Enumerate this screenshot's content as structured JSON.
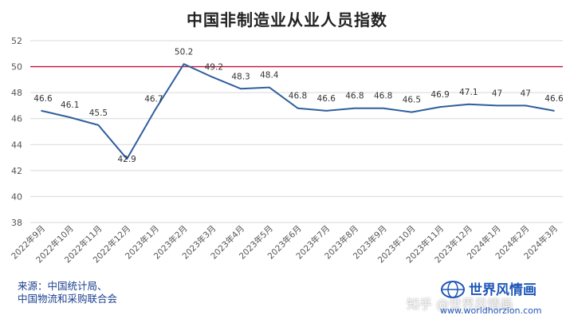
{
  "title": "中国非制造业从业人员指数",
  "source": {
    "line1": "来源：中国统计局、",
    "line2": "中国物流和采购联合会"
  },
  "brand": {
    "name": "世界风情画",
    "url": "www.worldhorzion.com",
    "logo_icon": "globe-icon",
    "color": "#1f56b8"
  },
  "watermark": "知乎 @世界风情画",
  "colors": {
    "series_line": "#2f5f9e",
    "threshold_line": "#c0143c",
    "grid": "#d9d9d9",
    "axis_text": "#555555"
  },
  "chart_data": {
    "type": "line",
    "title": "中国非制造业从业人员指数",
    "xlabel": "",
    "ylabel": "",
    "ylim": [
      38,
      52
    ],
    "yticks": [
      38,
      40,
      42,
      44,
      46,
      48,
      50,
      52
    ],
    "grid": true,
    "categories": [
      "2022年9月",
      "2022年10月",
      "2022年11月",
      "2022年12月",
      "2023年1月",
      "2023年2月",
      "2023年3月",
      "2023年4月",
      "2023年5月",
      "2023年6月",
      "2023年7月",
      "2023年8月",
      "2023年9月",
      "2023年10月",
      "2023年11月",
      "2023年12月",
      "2024年1月",
      "2024年2月",
      "2024年3月"
    ],
    "series": [
      {
        "values": [
          46.6,
          46.1,
          45.5,
          42.9,
          46.7,
          50.2,
          49.2,
          48.3,
          48.4,
          46.8,
          46.6,
          46.8,
          46.8,
          46.5,
          46.9,
          47.1,
          47,
          47,
          46.6
        ],
        "data_labels": [
          "46.6",
          "46.1",
          "45.5",
          "42.9",
          "46.7",
          "50.2",
          "49.2",
          "48.3",
          "48.4",
          "46.8",
          "46.6",
          "46.8",
          "46.8",
          "46.5",
          "46.9",
          "47.1",
          "47",
          "47",
          "46.6"
        ]
      }
    ],
    "reference_line": 50
  }
}
